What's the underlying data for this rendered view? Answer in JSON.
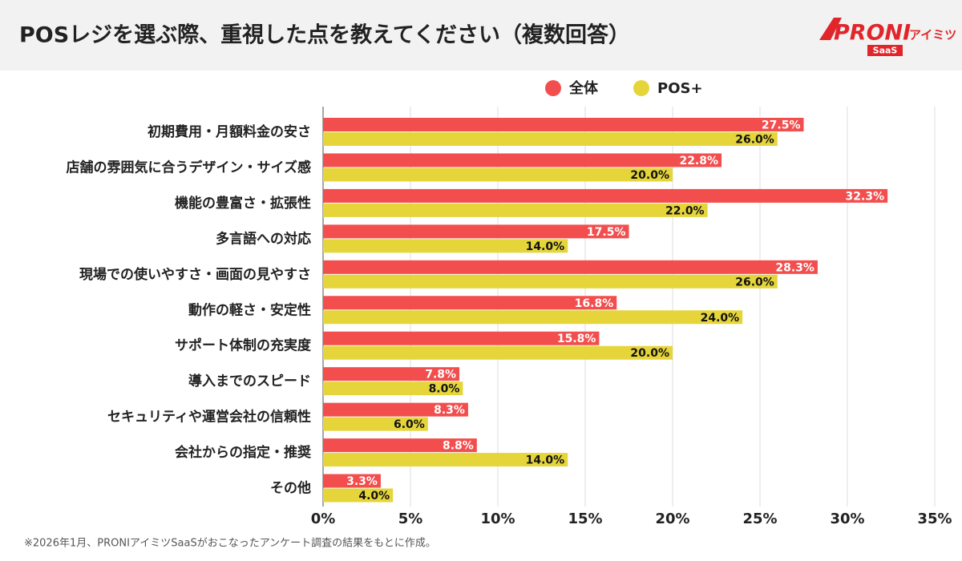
{
  "chart_data": {
    "type": "bar",
    "orientation": "horizontal",
    "title": "POSレジを選ぶ際、重視した点を教えてください（複数回答）",
    "categories": [
      "初期費用・月額料金の安さ",
      "店舗の雰囲気に合うデザイン・サイズ感",
      "機能の豊富さ・拡張性",
      "多言語への対応",
      "現場での使いやすさ・画面の見やすさ",
      "動作の軽さ・安定性",
      "サポート体制の充実度",
      "導入までのスピード",
      "セキュリティや運営会社の信頼性",
      "会社からの指定・推奨",
      "その他"
    ],
    "series": [
      {
        "name": "全体",
        "color": "#f24e4e",
        "values": [
          27.5,
          22.8,
          32.3,
          17.5,
          28.3,
          16.8,
          15.8,
          7.8,
          8.3,
          8.8,
          3.3
        ],
        "value_labels": [
          "27.5%",
          "22.8%",
          "32.3%",
          "17.5%",
          "28.3%",
          "16.8%",
          "15.8%",
          "7.8%",
          "8.3%",
          "8.8%",
          "3.3%"
        ]
      },
      {
        "name": "POS+",
        "color": "#e5d53b",
        "values": [
          26.0,
          20.0,
          22.0,
          14.0,
          26.0,
          24.0,
          20.0,
          8.0,
          6.0,
          14.0,
          4.0
        ],
        "value_labels": [
          "26.0%",
          "20.0%",
          "22.0%",
          "14.0%",
          "26.0%",
          "24.0%",
          "20.0%",
          "8.0%",
          "6.0%",
          "14.0%",
          "4.0%"
        ]
      }
    ],
    "xlim": [
      0,
      35
    ],
    "xticks": [
      {
        "value": 0,
        "label": "0%"
      },
      {
        "value": 5,
        "label": "5%"
      },
      {
        "value": 10,
        "label": "10%"
      },
      {
        "value": 15,
        "label": "15%"
      },
      {
        "value": 20,
        "label": "20%"
      },
      {
        "value": 25,
        "label": "25%"
      },
      {
        "value": 30,
        "label": "30%"
      },
      {
        "value": 35,
        "label": "35%"
      }
    ],
    "grid": true,
    "legend": "top"
  },
  "logo": {
    "brand": "PRONI",
    "sub": "アイミツ",
    "badge": "SaaS"
  },
  "footnote": "※2026年1月、PRONIアイミツSaaSがおこなったアンケート調査の結果をもとに作成。"
}
